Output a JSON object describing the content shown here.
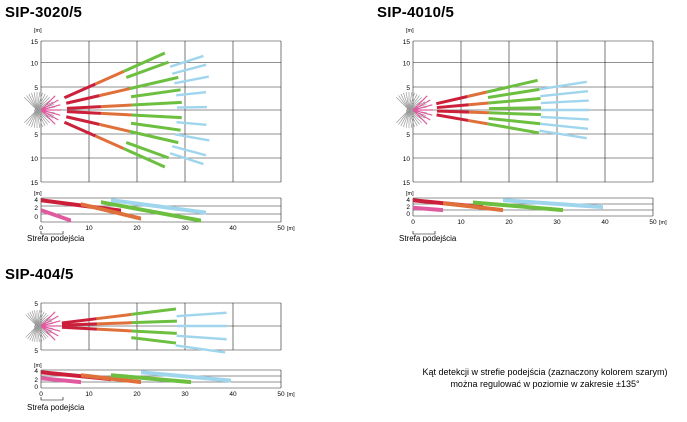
{
  "panels": [
    {
      "id": "sip3020",
      "title": "SIP-3020/5",
      "top_view": {
        "unit": "[m]",
        "y_ticks": [
          "15",
          "10",
          "5",
          "0",
          "5",
          "10",
          "15"
        ]
      },
      "side_view": {
        "unit": "[m]",
        "y_ticks": [
          "4",
          "2",
          "0"
        ],
        "x_ticks": [
          "0",
          "10",
          "20",
          "30",
          "40",
          "50"
        ],
        "x_unit": "[m]"
      },
      "zone_label": "Strefa podejścia"
    },
    {
      "id": "sip4010",
      "title": "SIP-4010/5",
      "top_view": {
        "unit": "[m]",
        "y_ticks": [
          "15",
          "10",
          "5",
          "0",
          "5",
          "10",
          "15"
        ]
      },
      "side_view": {
        "unit": "[m]",
        "y_ticks": [
          "4",
          "2",
          "0"
        ],
        "x_ticks": [
          "0",
          "10",
          "20",
          "30",
          "40",
          "50"
        ],
        "x_unit": "[m]"
      },
      "zone_label": "Strefa podejścia"
    },
    {
      "id": "sip404",
      "title": "SIP-404/5",
      "top_view": {
        "unit": "",
        "y_ticks": [
          "5",
          "0",
          "5"
        ]
      },
      "side_view": {
        "unit": "[m]",
        "y_ticks": [
          "4",
          "2",
          "0"
        ],
        "x_ticks": [
          "0",
          "10",
          "20",
          "30",
          "40",
          "50"
        ],
        "x_unit": "[m]"
      },
      "zone_label": "Strefa podejścia"
    }
  ],
  "caption": {
    "line1": "Kąt detekcji w strefie podejścia (zaznaczony kolorem szarym)",
    "line2": "można regulować w poziomie w zakresie ±135°"
  },
  "colors": {
    "grid": "#222222",
    "zone_gray": "#9a9a9a",
    "near_pink": "#e05aa0",
    "red": "#cc1f3a",
    "orange": "#e0703a",
    "green": "#6cbf3f",
    "cyan": "#9fd6ee"
  }
}
